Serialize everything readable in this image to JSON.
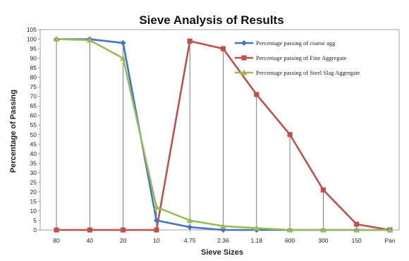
{
  "chart_data": {
    "type": "line",
    "title": "Sieve Analysis of Results",
    "xlabel": "Sieve Sizes",
    "ylabel": "Percentage of Passing",
    "categories": [
      "80",
      "40",
      "20",
      "10",
      "4.75",
      "2.36",
      "1.18",
      "600",
      "300",
      "150",
      "Pan"
    ],
    "ylim": [
      0,
      105
    ],
    "yticks": [
      0,
      5,
      10,
      15,
      20,
      25,
      30,
      35,
      40,
      45,
      50,
      55,
      60,
      65,
      70,
      75,
      80,
      85,
      90,
      95,
      100,
      105
    ],
    "grid": "vertical drop lines at each sieve size",
    "legend_position": "top-right",
    "series": [
      {
        "name": "Percentage passing of coarse agg",
        "color": "#4472C4",
        "marker": "diamond",
        "values": [
          100,
          100,
          98,
          5,
          1.5,
          0,
          0,
          0,
          0,
          0,
          0
        ]
      },
      {
        "name": "Percentage passing of Fine Aggregate",
        "color": "#C0504D",
        "marker": "square",
        "values": [
          0,
          0,
          0,
          0,
          99,
          95,
          71,
          50,
          21,
          3,
          0
        ]
      },
      {
        "name": "Percentage passing of Steel Slag Aggregate",
        "color": "#9BBB59",
        "marker": "triangle",
        "values": [
          100,
          99.5,
          90,
          12,
          5,
          2,
          1,
          0,
          0,
          0,
          0
        ]
      }
    ]
  }
}
